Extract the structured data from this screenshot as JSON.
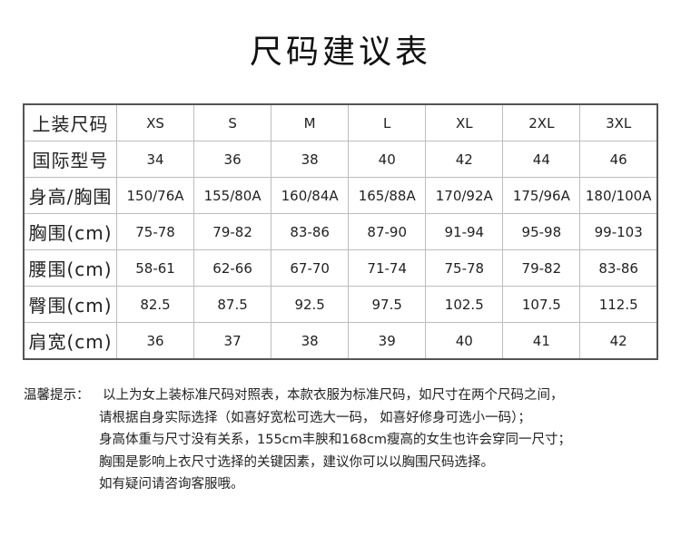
{
  "title": "尺码建议表",
  "table": {
    "rows": [
      {
        "label": "上装尺码",
        "cells": [
          "XS",
          "S",
          "M",
          "L",
          "XL",
          "2XL",
          "3XL"
        ]
      },
      {
        "label": "国际型号",
        "cells": [
          "34",
          "36",
          "38",
          "40",
          "42",
          "44",
          "46"
        ]
      },
      {
        "label": "身高/胸围",
        "cells": [
          "150/76A",
          "155/80A",
          "160/84A",
          "165/88A",
          "170/92A",
          "175/96A",
          "180/100A"
        ]
      },
      {
        "label": "胸围(cm)",
        "cells": [
          "75-78",
          "79-82",
          "83-86",
          "87-90",
          "91-94",
          "95-98",
          "99-103"
        ]
      },
      {
        "label": "腰围(cm)",
        "cells": [
          "58-61",
          "62-66",
          "67-70",
          "71-74",
          "75-78",
          "79-82",
          "83-86"
        ]
      },
      {
        "label": "臀围(cm)",
        "cells": [
          "82.5",
          "87.5",
          "92.5",
          "97.5",
          "102.5",
          "107.5",
          "112.5"
        ]
      },
      {
        "label": "肩宽(cm)",
        "cells": [
          "36",
          "37",
          "38",
          "39",
          "40",
          "41",
          "42"
        ]
      }
    ]
  },
  "notes": {
    "label": "温馨提示：",
    "lines": [
      "以上为女上装标准尺码对照表，本款衣服为标准尺码，如尺寸在两个尺码之间，",
      "请根据自身实际选择（如喜好宽松可选大一码， 如喜好修身可选小一码）；",
      "身高体重与尺寸没有关系，155cm丰腴和168cm瘦高的女生也许会穿同一尺寸；",
      "胸围是影响上衣尺寸选择的关键因素，建议你可以以胸围尺码选择。",
      "如有疑问请咨询客服哦。"
    ]
  }
}
